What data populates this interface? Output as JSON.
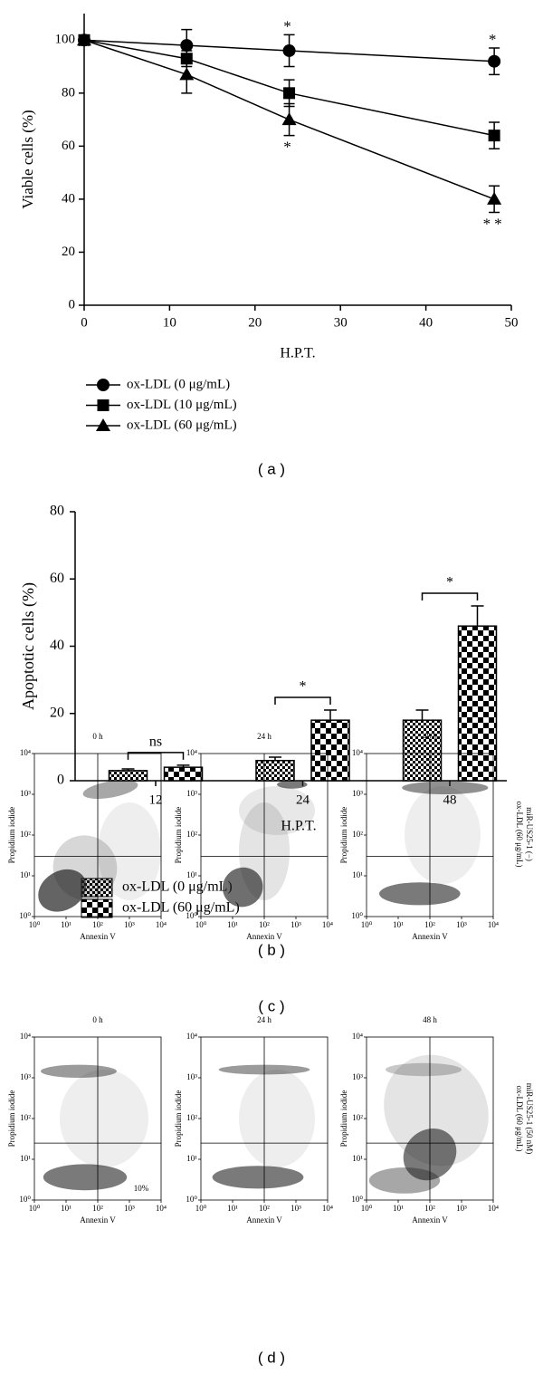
{
  "panel_labels": [
    "( a )",
    "( b )",
    "( c )",
    "( d )"
  ],
  "row_labels": [
    [
      "ox-LDL (60 μg/mL)",
      "miR-US25-1 (−)"
    ],
    [
      "ox-LDL (60 μg/mL)",
      "miR-US25-1 (50 nM)"
    ]
  ],
  "chart_data": [
    {
      "type": "line",
      "xlabel": "H.P.T.",
      "ylabel": "Viable cells (%)",
      "x": [
        0,
        12,
        24,
        48
      ],
      "xlim": [
        0,
        50
      ],
      "xticks": [
        0,
        10,
        20,
        30,
        40,
        50
      ],
      "ylim": [
        0,
        110
      ],
      "yticks": [
        0,
        20,
        40,
        60,
        80,
        100
      ],
      "legend": "below",
      "series": [
        {
          "name": "ox-LDL (0 μg/mL)",
          "color": "#000000",
          "marker": "circle",
          "values": [
            100,
            98,
            96,
            92
          ],
          "errors": [
            0,
            6,
            6,
            5
          ],
          "significance": [
            null,
            null,
            "*",
            "*"
          ],
          "significance_side": "above"
        },
        {
          "name": "ox-LDL (10 μg/mL)",
          "color": "#000000",
          "marker": "square",
          "values": [
            100,
            93,
            80,
            64
          ],
          "errors": [
            0,
            3,
            5,
            5
          ]
        },
        {
          "name": "ox-LDL (60 μg/mL)",
          "color": "#000000",
          "marker": "triangle",
          "values": [
            100,
            87,
            70,
            40
          ],
          "errors": [
            0,
            7,
            6,
            5
          ],
          "significance": [
            null,
            null,
            "*",
            "**"
          ],
          "significance_side": "below"
        }
      ]
    },
    {
      "type": "bar",
      "xlabel": "H.P.T.",
      "ylabel": "Apoptotic cells (%)",
      "categories": [
        "12",
        "24",
        "48"
      ],
      "ylim": [
        0,
        80
      ],
      "yticks": [
        0,
        20,
        40,
        60,
        80
      ],
      "legend": "below",
      "significance": [
        "ns",
        "*",
        "*"
      ],
      "series": [
        {
          "name": "ox-LDL (0 μg/mL)",
          "color": "#000000",
          "pattern": "fine-checker",
          "values": [
            3,
            6,
            18
          ],
          "errors": [
            0.5,
            1,
            3
          ]
        },
        {
          "name": "ox-LDL (60 μg/mL)",
          "color": "#000000",
          "pattern": "coarse-checker",
          "values": [
            4,
            18,
            46
          ],
          "errors": [
            0.6,
            3,
            6
          ]
        }
      ]
    },
    {
      "type": "flow-cytometry",
      "title": "0 h",
      "xlabel": "Annexin V",
      "ylabel": "Propidium iodide",
      "xscale": "log",
      "yscale": "log",
      "xlim": [
        1,
        10000
      ],
      "ylim": [
        1,
        10000
      ],
      "xticks": [
        {
          "value": 1,
          "label": "10⁰"
        },
        {
          "value": 10,
          "label": "10¹"
        },
        {
          "value": 100,
          "label": "10²"
        },
        {
          "value": 1000,
          "label": "10³"
        },
        {
          "value": 10000,
          "label": "10⁴"
        }
      ],
      "yticks": [
        {
          "value": 1,
          "label": "10⁰"
        },
        {
          "value": 10,
          "label": "10¹"
        },
        {
          "value": 100,
          "label": "10²"
        },
        {
          "value": 1000,
          "label": "10³"
        },
        {
          "value": 10000,
          "label": "10⁴"
        }
      ],
      "gates": {
        "x": 100,
        "y": 30
      }
    },
    {
      "type": "flow-cytometry",
      "title": "24 h",
      "xlabel": "Annexin V",
      "ylabel": "Propidium iodide",
      "xscale": "log",
      "yscale": "log",
      "xlim": [
        1,
        10000
      ],
      "ylim": [
        1,
        10000
      ],
      "xticks": [
        {
          "value": 1,
          "label": "10⁰"
        },
        {
          "value": 10,
          "label": "10¹"
        },
        {
          "value": 100,
          "label": "10²"
        },
        {
          "value": 1000,
          "label": "10³"
        },
        {
          "value": 10000,
          "label": "10⁴"
        }
      ],
      "yticks": [
        {
          "value": 1,
          "label": "10⁰"
        },
        {
          "value": 10,
          "label": "10¹"
        },
        {
          "value": 100,
          "label": "10²"
        },
        {
          "value": 1000,
          "label": "10³"
        },
        {
          "value": 10000,
          "label": "10⁴"
        }
      ],
      "gates": {
        "x": 100,
        "y": 30
      }
    },
    {
      "type": "flow-cytometry",
      "title": "48 h",
      "xlabel": "Annexin V",
      "ylabel": "Propidium iodide",
      "xscale": "log",
      "yscale": "log",
      "xlim": [
        1,
        10000
      ],
      "ylim": [
        1,
        10000
      ],
      "xticks": [
        {
          "value": 1,
          "label": "10⁰"
        },
        {
          "value": 10,
          "label": "10¹"
        },
        {
          "value": 100,
          "label": "10²"
        },
        {
          "value": 1000,
          "label": "10³"
        },
        {
          "value": 10000,
          "label": "10⁴"
        }
      ],
      "yticks": [
        {
          "value": 1,
          "label": "10⁰"
        },
        {
          "value": 10,
          "label": "10¹"
        },
        {
          "value": 100,
          "label": "10²"
        },
        {
          "value": 1000,
          "label": "10³"
        },
        {
          "value": 10000,
          "label": "10⁴"
        }
      ],
      "gates": {
        "x": 100,
        "y": 30
      }
    },
    {
      "type": "flow-cytometry",
      "title": "0 h",
      "xlabel": "Annexin V",
      "ylabel": "Propidium iodide",
      "xscale": "log",
      "yscale": "log",
      "xlim": [
        1,
        10000
      ],
      "ylim": [
        1,
        10000
      ],
      "xticks": [
        {
          "value": 1,
          "label": "10⁰"
        },
        {
          "value": 10,
          "label": "10¹"
        },
        {
          "value": 100,
          "label": "10²"
        },
        {
          "value": 1000,
          "label": "10³"
        },
        {
          "value": 10000,
          "label": "10⁴"
        }
      ],
      "yticks": [
        {
          "value": 1,
          "label": "10⁰"
        },
        {
          "value": 10,
          "label": "10¹"
        },
        {
          "value": 100,
          "label": "10²"
        },
        {
          "value": 1000,
          "label": "10³"
        },
        {
          "value": 10000,
          "label": "10⁴"
        }
      ],
      "gates": {
        "x": 100,
        "y": 25
      },
      "annotation": "10%"
    },
    {
      "type": "flow-cytometry",
      "title": "24 h",
      "xlabel": "Annexin V",
      "ylabel": "Propidium iodide",
      "xscale": "log",
      "yscale": "log",
      "xlim": [
        1,
        10000
      ],
      "ylim": [
        1,
        10000
      ],
      "xticks": [
        {
          "value": 1,
          "label": "10⁰"
        },
        {
          "value": 10,
          "label": "10¹"
        },
        {
          "value": 100,
          "label": "10²"
        },
        {
          "value": 1000,
          "label": "10³"
        },
        {
          "value": 10000,
          "label": "10⁴"
        }
      ],
      "yticks": [
        {
          "value": 1,
          "label": "10⁰"
        },
        {
          "value": 10,
          "label": "10¹"
        },
        {
          "value": 100,
          "label": "10²"
        },
        {
          "value": 1000,
          "label": "10³"
        },
        {
          "value": 10000,
          "label": "10⁴"
        }
      ],
      "gates": {
        "x": 100,
        "y": 25
      }
    },
    {
      "type": "flow-cytometry",
      "title": "48 h",
      "xlabel": "Annexin V",
      "ylabel": "Propidium iodide",
      "xscale": "log",
      "yscale": "log",
      "xlim": [
        1,
        10000
      ],
      "ylim": [
        1,
        10000
      ],
      "xticks": [
        {
          "value": 1,
          "label": "10⁰"
        },
        {
          "value": 10,
          "label": "10¹"
        },
        {
          "value": 100,
          "label": "10²"
        },
        {
          "value": 1000,
          "label": "10³"
        },
        {
          "value": 10000,
          "label": "10⁴"
        }
      ],
      "yticks": [
        {
          "value": 1,
          "label": "10⁰"
        },
        {
          "value": 10,
          "label": "10¹"
        },
        {
          "value": 100,
          "label": "10²"
        },
        {
          "value": 1000,
          "label": "10³"
        },
        {
          "value": 10000,
          "label": "10⁴"
        }
      ],
      "gates": {
        "x": 100,
        "y": 25
      }
    }
  ]
}
